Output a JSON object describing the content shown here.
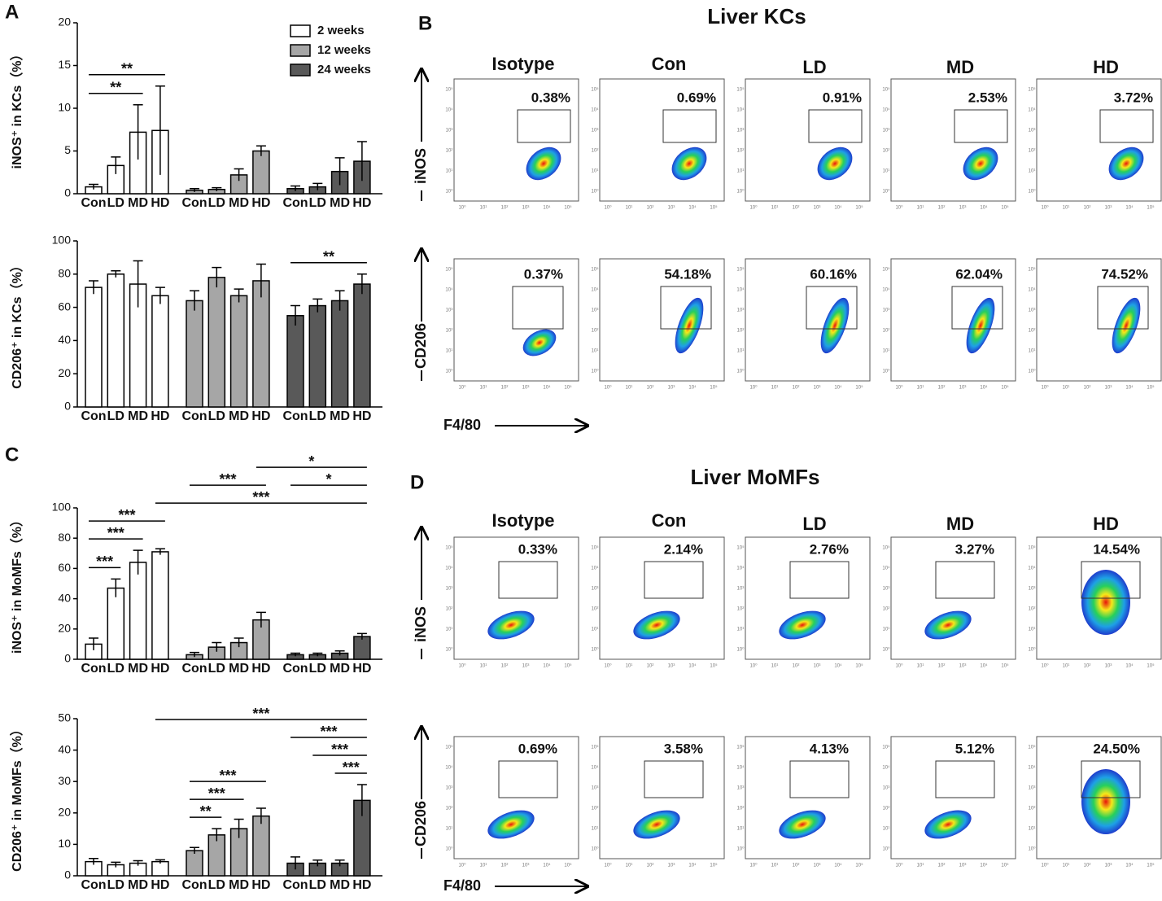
{
  "panel_letters": [
    "A",
    "B",
    "C",
    "D"
  ],
  "chart_data": [
    {
      "type": "bar",
      "ylabel": "iNOS⁺ in KCs（%）",
      "categories": [
        "Con",
        "LD",
        "MD",
        "HD",
        "Con",
        "LD",
        "MD",
        "HD",
        "Con",
        "LD",
        "MD",
        "HD"
      ],
      "ylim": [
        0,
        20
      ],
      "yticks": [
        0,
        5,
        10,
        15,
        20
      ],
      "legend": "top-right",
      "series": [
        {
          "name": "2 weeks",
          "color": "#ffffff",
          "values": [
            0.8,
            3.3,
            7.2,
            7.4,
            null,
            null,
            null,
            null,
            null,
            null,
            null,
            null
          ],
          "errors": [
            0.3,
            1.0,
            3.2,
            5.2,
            null,
            null,
            null,
            null,
            null,
            null,
            null,
            null
          ]
        },
        {
          "name": "12 weeks",
          "color": "#a6a6a6",
          "values": [
            null,
            null,
            null,
            null,
            0.4,
            0.5,
            2.2,
            5.0,
            null,
            null,
            null,
            null
          ],
          "errors": [
            null,
            null,
            null,
            null,
            0.2,
            0.2,
            0.7,
            0.6,
            null,
            null,
            null,
            null
          ]
        },
        {
          "name": "24 weeks",
          "color": "#595959",
          "values": [
            null,
            null,
            null,
            null,
            null,
            null,
            null,
            null,
            0.6,
            0.8,
            2.6,
            3.8
          ],
          "errors": [
            null,
            null,
            null,
            null,
            null,
            null,
            null,
            null,
            0.3,
            0.4,
            1.6,
            2.3
          ]
        }
      ],
      "annotations": [
        {
          "text": "**",
          "from": 0,
          "to": 2
        },
        {
          "text": "**",
          "from": 0,
          "to": 3
        }
      ]
    },
    {
      "type": "bar",
      "ylabel": "CD206⁺ in KCs（%）",
      "categories": [
        "Con",
        "LD",
        "MD",
        "HD",
        "Con",
        "LD",
        "MD",
        "HD",
        "Con",
        "LD",
        "MD",
        "HD"
      ],
      "ylim": [
        0,
        100
      ],
      "yticks": [
        0,
        20,
        40,
        60,
        80,
        100
      ],
      "series": [
        {
          "color": "#ffffff",
          "values": [
            72,
            80,
            74,
            67,
            null,
            null,
            null,
            null,
            null,
            null,
            null,
            null
          ],
          "errors": [
            4,
            2,
            14,
            5,
            null,
            null,
            null,
            null,
            null,
            null,
            null,
            null
          ]
        },
        {
          "color": "#a6a6a6",
          "values": [
            null,
            null,
            null,
            null,
            64,
            78,
            67,
            76,
            null,
            null,
            null,
            null
          ],
          "errors": [
            null,
            null,
            null,
            null,
            6,
            6,
            4,
            10,
            null,
            null,
            null,
            null
          ]
        },
        {
          "color": "#595959",
          "values": [
            null,
            null,
            null,
            null,
            null,
            null,
            null,
            null,
            55,
            61,
            64,
            74
          ],
          "errors": [
            null,
            null,
            null,
            null,
            null,
            null,
            null,
            null,
            6,
            4,
            6,
            6
          ]
        }
      ],
      "annotations": [
        {
          "text": "**",
          "from": 8,
          "to": 11
        }
      ]
    },
    {
      "type": "bar",
      "ylabel": "iNOS⁺ in MoMFs（%）",
      "categories": [
        "Con",
        "LD",
        "MD",
        "HD",
        "Con",
        "LD",
        "MD",
        "HD",
        "Con",
        "LD",
        "MD",
        "HD"
      ],
      "ylim": [
        0,
        100
      ],
      "yticks": [
        0,
        20,
        40,
        60,
        80,
        100
      ],
      "series": [
        {
          "color": "#ffffff",
          "values": [
            10,
            47,
            64,
            71,
            null,
            null,
            null,
            null,
            null,
            null,
            null,
            null
          ],
          "errors": [
            4,
            6,
            8,
            2,
            null,
            null,
            null,
            null,
            null,
            null,
            null,
            null
          ]
        },
        {
          "color": "#a6a6a6",
          "values": [
            null,
            null,
            null,
            null,
            3,
            8,
            11,
            26,
            null,
            null,
            null,
            null
          ],
          "errors": [
            null,
            null,
            null,
            null,
            1.5,
            3,
            3,
            5,
            null,
            null,
            null,
            null
          ]
        },
        {
          "color": "#595959",
          "values": [
            null,
            null,
            null,
            null,
            null,
            null,
            null,
            null,
            3,
            3,
            4,
            15
          ],
          "errors": [
            null,
            null,
            null,
            null,
            null,
            null,
            null,
            null,
            1,
            1,
            1.5,
            2
          ]
        }
      ],
      "annotations": [
        {
          "text": "***",
          "from": 0,
          "to": 1
        },
        {
          "text": "***",
          "from": 0,
          "to": 2
        },
        {
          "text": "***",
          "from": 0,
          "to": 3
        },
        {
          "text": "***",
          "from": 3,
          "to": 11
        },
        {
          "text": "*",
          "from": 8,
          "to": 11
        },
        {
          "text": "***",
          "from": 4,
          "to": 7
        },
        {
          "text": "*",
          "from": 7,
          "to": 11
        }
      ]
    },
    {
      "type": "bar",
      "ylabel": "CD206⁺ in MoMFs（%）",
      "categories": [
        "Con",
        "LD",
        "MD",
        "HD",
        "Con",
        "LD",
        "MD",
        "HD",
        "Con",
        "LD",
        "MD",
        "HD"
      ],
      "ylim": [
        0,
        50
      ],
      "yticks": [
        0,
        10,
        20,
        30,
        40,
        50
      ],
      "series": [
        {
          "color": "#ffffff",
          "values": [
            4.5,
            3.5,
            4,
            4.5,
            null,
            null,
            null,
            null,
            null,
            null,
            null,
            null
          ],
          "errors": [
            1,
            0.8,
            0.8,
            0.6,
            null,
            null,
            null,
            null,
            null,
            null,
            null,
            null
          ]
        },
        {
          "color": "#a6a6a6",
          "values": [
            null,
            null,
            null,
            null,
            8,
            13,
            15,
            19,
            null,
            null,
            null,
            null
          ],
          "errors": [
            null,
            null,
            null,
            null,
            1,
            2,
            3,
            2.5,
            null,
            null,
            null,
            null
          ]
        },
        {
          "color": "#595959",
          "values": [
            null,
            null,
            null,
            null,
            null,
            null,
            null,
            null,
            4,
            4,
            4,
            24
          ],
          "errors": [
            null,
            null,
            null,
            null,
            null,
            null,
            null,
            null,
            2,
            1,
            1,
            5
          ]
        }
      ],
      "annotations": [
        {
          "text": "**",
          "from": 4,
          "to": 5
        },
        {
          "text": "***",
          "from": 4,
          "to": 6
        },
        {
          "text": "***",
          "from": 4,
          "to": 7
        },
        {
          "text": "***",
          "from": 10,
          "to": 11
        },
        {
          "text": "***",
          "from": 9,
          "to": 11
        },
        {
          "text": "***",
          "from": 8,
          "to": 11
        },
        {
          "text": "***",
          "from": 3,
          "to": 11
        }
      ]
    }
  ],
  "flow_ticks": [
    "10⁰",
    "10¹",
    "10²",
    "10³",
    "10⁴",
    "10⁵"
  ],
  "flow_panels": [
    {
      "title": "Liver KCs",
      "columns": [
        "Isotype",
        "Con",
        "LD",
        "MD",
        "HD"
      ],
      "xlabel": "F4/80",
      "rows": [
        {
          "channel": "iNOS",
          "percents": [
            "0.38%",
            "0.69%",
            "0.91%",
            "2.53%",
            "3.72%"
          ]
        },
        {
          "channel": "CD206",
          "percents": [
            "0.37%",
            "54.18%",
            "60.16%",
            "62.04%",
            "74.52%"
          ]
        }
      ]
    },
    {
      "title": "Liver MoMFs",
      "columns": [
        "Isotype",
        "Con",
        "LD",
        "MD",
        "HD"
      ],
      "xlabel": "F4/80",
      "rows": [
        {
          "channel": "iNOS",
          "percents": [
            "0.33%",
            "2.14%",
            "2.76%",
            "3.27%",
            "14.54%"
          ]
        },
        {
          "channel": "CD206",
          "percents": [
            "0.69%",
            "3.58%",
            "4.13%",
            "5.12%",
            "24.50%"
          ]
        }
      ]
    }
  ]
}
